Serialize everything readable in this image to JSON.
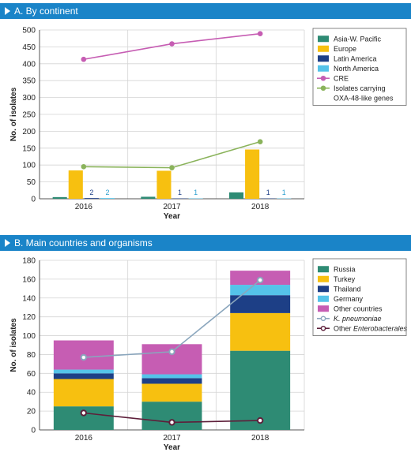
{
  "panel_a": {
    "banner": "A. By continent"
  },
  "panel_b": {
    "banner": "B. Main countries and organisms"
  },
  "chart_data": [
    {
      "type": "bar",
      "categories": [
        "2016",
        "2017",
        "2018"
      ],
      "xlabel": "Year",
      "ylabel": "No. of isolates",
      "ylim": [
        0,
        500
      ],
      "yticks": [
        0,
        50,
        100,
        150,
        200,
        250,
        300,
        350,
        400,
        450,
        500
      ],
      "grid": true,
      "legend_position": "right",
      "series": [
        {
          "name": "Asia-W. Pacific",
          "kind": "bar",
          "color": "#2e8b74",
          "values": [
            5,
            6,
            19
          ],
          "labels": [
            "",
            "",
            ""
          ]
        },
        {
          "name": "Europe",
          "kind": "bar",
          "color": "#f7c010",
          "values": [
            84,
            83,
            146
          ],
          "labels": [
            "",
            "",
            ""
          ]
        },
        {
          "name": "Latin America",
          "kind": "bar",
          "color": "#1d3f86",
          "values": [
            2,
            1,
            1
          ],
          "labels": [
            "2",
            "1",
            "1"
          ]
        },
        {
          "name": "North America",
          "kind": "bar",
          "color": "#55c3e9",
          "values": [
            2,
            1,
            1
          ],
          "labels": [
            "2",
            "1",
            "1"
          ]
        },
        {
          "name": "CRE",
          "kind": "line",
          "color": "#c65db3",
          "values": [
            413,
            459,
            489
          ]
        },
        {
          "name": "Isolates carrying",
          "name_line2": "OXA-48-like genes",
          "kind": "line",
          "color": "#8ab35b",
          "values": [
            95,
            92,
            169
          ]
        }
      ]
    },
    {
      "type": "bar",
      "stacked": true,
      "categories": [
        "2016",
        "2017",
        "2018"
      ],
      "xlabel": "Year",
      "ylabel": "No. of isolates",
      "ylim": [
        0,
        180
      ],
      "yticks": [
        0,
        20,
        40,
        60,
        80,
        100,
        120,
        140,
        160,
        180
      ],
      "grid": true,
      "legend_position": "right",
      "series": [
        {
          "name": "Russia",
          "kind": "bar",
          "color": "#2e8b74",
          "values": [
            25,
            30,
            84
          ]
        },
        {
          "name": "Turkey",
          "kind": "bar",
          "color": "#f7c010",
          "values": [
            29,
            19,
            40
          ]
        },
        {
          "name": "Thailand",
          "kind": "bar",
          "color": "#1d3f86",
          "values": [
            6,
            6,
            19
          ]
        },
        {
          "name": "Germany",
          "kind": "bar",
          "color": "#55c3e9",
          "values": [
            4,
            4,
            11
          ]
        },
        {
          "name": "Other countries",
          "kind": "bar",
          "color": "#c65db3",
          "values": [
            31,
            32,
            15
          ]
        },
        {
          "name": "K. pneumoniae",
          "italic": true,
          "kind": "line",
          "color": "#8aa6bd",
          "values": [
            77,
            83,
            159
          ]
        },
        {
          "name_prefix": "Other ",
          "name": "Enterobacterales",
          "italic": true,
          "kind": "line",
          "color": "#5e1f3a",
          "values": [
            18,
            8,
            10
          ]
        }
      ]
    }
  ]
}
